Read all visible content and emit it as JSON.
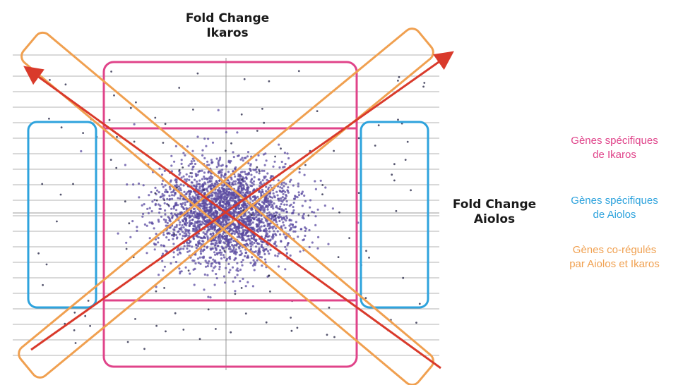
{
  "chart_data": {
    "type": "scatter",
    "title": "",
    "xlabel": "Fold Change\nAiolos",
    "ylabel": "Fold Change\nIkaros",
    "xlim": [
      -3,
      3
    ],
    "ylim": [
      -3,
      3
    ],
    "grid": "horizontal",
    "point_color": "#5a4aa0",
    "annotations": [
      {
        "label": "Gènes spécifiques\nde Ikaros",
        "color": "#e0448a",
        "region": "central column, large |Ikaros fold change|"
      },
      {
        "label": "Gènes spécifiques\nde Aiolos",
        "color": "#2ea3dd",
        "region": "left and right columns, large |Aiolos fold change|"
      },
      {
        "label": "Gènes co-régulés\npar Aiolos et Ikaros",
        "color": "#f0a050",
        "region": "both diagonals"
      }
    ],
    "legend_position": "right"
  },
  "colors": {
    "ikaros": "#e0448a",
    "aiolos": "#2ea3dd",
    "coregulated": "#f0a050",
    "arrow": "#d93a2b",
    "grid": "#9a9a9a",
    "points": "#5a4aa0"
  }
}
